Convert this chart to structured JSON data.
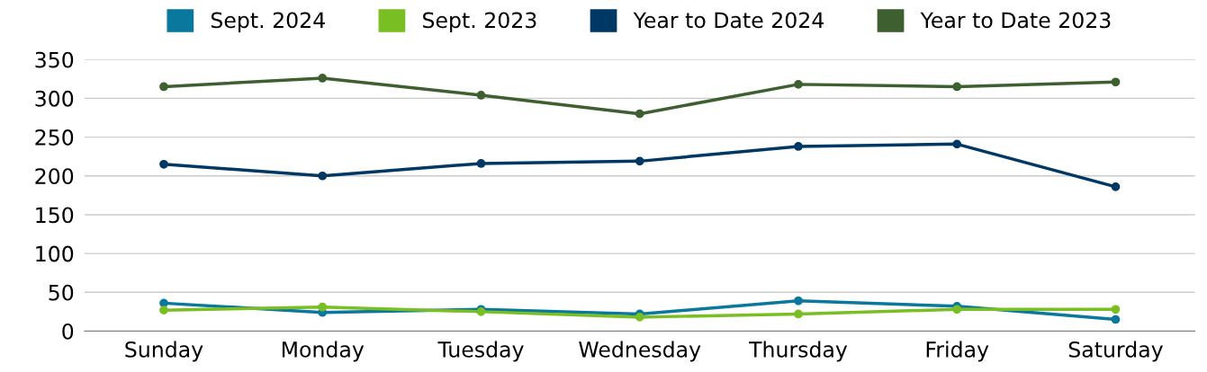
{
  "chart_data": {
    "type": "line",
    "categories": [
      "Sunday",
      "Monday",
      "Tuesday",
      "Wednesday",
      "Thursday",
      "Friday",
      "Saturday"
    ],
    "series": [
      {
        "name": "Sept. 2024",
        "color": "#0a779c",
        "values": [
          36,
          24,
          28,
          22,
          39,
          32,
          15
        ]
      },
      {
        "name": "Sept. 2023",
        "color": "#79be23",
        "values": [
          27,
          31,
          25,
          18,
          22,
          28,
          28
        ]
      },
      {
        "name": "Year to Date 2024",
        "color": "#003865",
        "values": [
          215,
          200,
          216,
          219,
          238,
          241,
          186
        ]
      },
      {
        "name": "Year to Date 2023",
        "color": "#3e5f2f",
        "values": [
          315,
          326,
          304,
          280,
          318,
          315,
          321
        ]
      }
    ],
    "ylim": [
      0,
      350
    ],
    "yticks": [
      0,
      50,
      100,
      150,
      200,
      250,
      300,
      350
    ],
    "grid": "y",
    "legend": "top",
    "marker": "circle",
    "line_style": "solid"
  }
}
